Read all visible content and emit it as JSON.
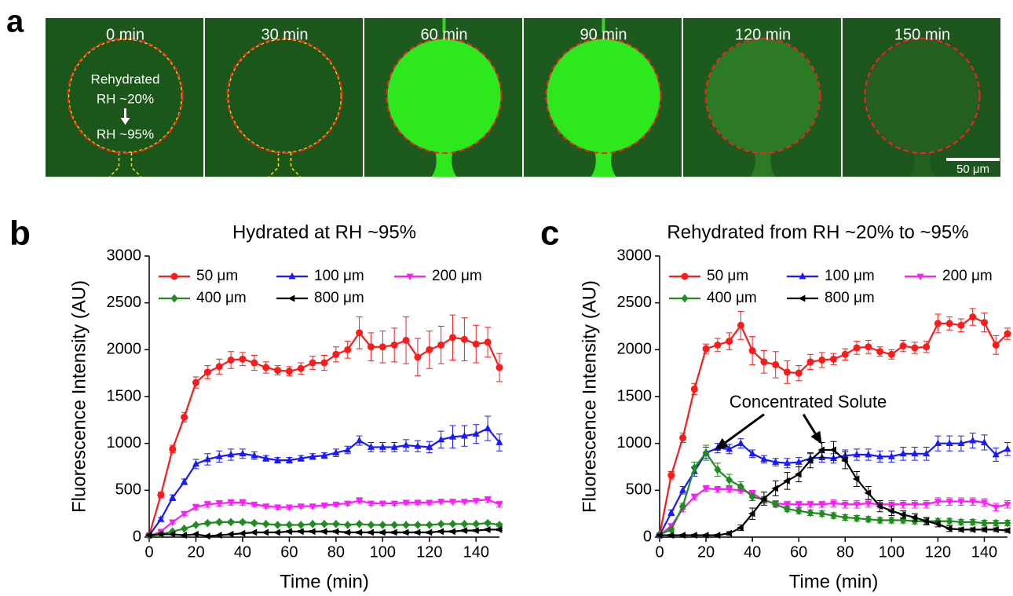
{
  "panel_labels": [
    "a",
    "b",
    "c"
  ],
  "microscopy": {
    "frames": [
      "0 min",
      "30 min",
      "60 min",
      "90 min",
      "120 min",
      "150 min"
    ],
    "annotation": [
      "Rehydrated",
      "RH ~20%",
      "RH ~95%"
    ],
    "scale_bar": "50 μm"
  },
  "chart_data": [
    {
      "type": "line",
      "title": "Hydrated at RH ~95%",
      "x_label": "Time (min)",
      "y_label": "Fluorescence Intensity (AU)",
      "x": [
        0,
        5,
        10,
        15,
        20,
        25,
        30,
        35,
        40,
        45,
        50,
        55,
        60,
        65,
        70,
        75,
        80,
        85,
        90,
        95,
        100,
        105,
        110,
        115,
        120,
        125,
        130,
        135,
        140,
        145,
        150
      ],
      "xlim": [
        0,
        150
      ],
      "xticks": [
        0,
        20,
        40,
        60,
        80,
        100,
        120,
        140
      ],
      "ylim": [
        0,
        3000
      ],
      "yticks": [
        0,
        500,
        1000,
        1500,
        2000,
        2500,
        3000
      ],
      "legend": "upper left",
      "series": [
        {
          "name": "50 μm",
          "color": "#ff1a1a",
          "marker": "circle",
          "values": [
            20,
            450,
            940,
            1280,
            1650,
            1760,
            1820,
            1890,
            1900,
            1860,
            1810,
            1780,
            1770,
            1800,
            1860,
            1860,
            1950,
            2000,
            2180,
            2030,
            2030,
            2050,
            2100,
            1920,
            2000,
            2050,
            2130,
            2110,
            2060,
            2080,
            1810
          ],
          "errors": [
            20,
            30,
            40,
            50,
            60,
            70,
            80,
            90,
            70,
            80,
            60,
            50,
            50,
            60,
            70,
            80,
            80,
            90,
            170,
            150,
            170,
            180,
            250,
            200,
            200,
            200,
            240,
            230,
            200,
            160,
            150
          ]
        },
        {
          "name": "100 μm",
          "color": "#1a1aff",
          "marker": "triangle-up",
          "values": [
            20,
            190,
            420,
            590,
            780,
            830,
            860,
            880,
            890,
            870,
            840,
            820,
            820,
            840,
            860,
            870,
            900,
            930,
            1030,
            960,
            960,
            960,
            980,
            970,
            960,
            1040,
            1070,
            1080,
            1100,
            1160,
            1010
          ],
          "errors": [
            20,
            20,
            30,
            30,
            50,
            60,
            60,
            60,
            50,
            40,
            30,
            30,
            30,
            30,
            30,
            30,
            40,
            40,
            50,
            50,
            50,
            50,
            60,
            60,
            60,
            90,
            120,
            110,
            100,
            130,
            90
          ]
        },
        {
          "name": "200 μm",
          "color": "#ff1aff",
          "marker": "triangle-down",
          "values": [
            10,
            60,
            160,
            250,
            320,
            350,
            360,
            370,
            370,
            350,
            330,
            320,
            320,
            330,
            330,
            340,
            350,
            360,
            390,
            360,
            360,
            360,
            370,
            370,
            370,
            380,
            380,
            380,
            390,
            400,
            350
          ],
          "errors": [
            10,
            10,
            20,
            20,
            30,
            30,
            30,
            30,
            30,
            20,
            20,
            20,
            20,
            20,
            20,
            20,
            20,
            20,
            30,
            20,
            20,
            20,
            20,
            20,
            20,
            20,
            20,
            20,
            20,
            30,
            30
          ]
        },
        {
          "name": "400 μm",
          "color": "#1e8c1e",
          "marker": "diamond",
          "values": [
            10,
            30,
            60,
            90,
            130,
            150,
            160,
            160,
            160,
            150,
            140,
            130,
            130,
            130,
            140,
            140,
            140,
            130,
            140,
            130,
            130,
            130,
            130,
            130,
            130,
            140,
            140,
            140,
            140,
            150,
            130
          ],
          "errors": [
            5,
            10,
            10,
            10,
            10,
            15,
            15,
            15,
            15,
            15,
            10,
            10,
            10,
            10,
            10,
            10,
            10,
            10,
            10,
            10,
            10,
            10,
            10,
            10,
            10,
            10,
            10,
            10,
            10,
            15,
            15
          ]
        },
        {
          "name": "800 μm",
          "color": "#000000",
          "marker": "triangle-left",
          "values": [
            20,
            30,
            30,
            20,
            30,
            10,
            20,
            30,
            40,
            50,
            50,
            50,
            60,
            60,
            60,
            60,
            60,
            50,
            50,
            50,
            50,
            50,
            50,
            50,
            50,
            60,
            60,
            70,
            70,
            80,
            80
          ],
          "errors": [
            5,
            5,
            5,
            5,
            5,
            5,
            5,
            5,
            5,
            5,
            5,
            5,
            10,
            10,
            10,
            10,
            10,
            10,
            10,
            10,
            10,
            10,
            10,
            10,
            10,
            10,
            10,
            10,
            10,
            10,
            10
          ]
        }
      ]
    },
    {
      "type": "line",
      "title": "Rehydrated from RH ~20% to ~95%",
      "x_label": "Time (min)",
      "y_label": "Fluorescence Intensity (AU)",
      "annotation": "Concentrated Solute",
      "x": [
        0,
        5,
        10,
        15,
        20,
        25,
        30,
        35,
        40,
        45,
        50,
        55,
        60,
        65,
        70,
        75,
        80,
        85,
        90,
        95,
        100,
        105,
        110,
        115,
        120,
        125,
        130,
        135,
        140,
        145,
        150
      ],
      "xlim": [
        0,
        150
      ],
      "xticks": [
        0,
        20,
        40,
        60,
        80,
        100,
        120,
        140
      ],
      "ylim": [
        0,
        3000
      ],
      "yticks": [
        0,
        500,
        1000,
        1500,
        2000,
        2500,
        3000
      ],
      "legend": "upper left",
      "series": [
        {
          "name": "50 μm",
          "color": "#ff1a1a",
          "marker": "circle",
          "values": [
            20,
            660,
            1060,
            1580,
            2010,
            2050,
            2090,
            2260,
            1990,
            1870,
            1840,
            1760,
            1750,
            1870,
            1890,
            1900,
            1950,
            2020,
            2030,
            1980,
            1950,
            2040,
            2020,
            2030,
            2280,
            2280,
            2260,
            2350,
            2290,
            2050,
            2170
          ],
          "errors": [
            20,
            40,
            50,
            60,
            50,
            70,
            90,
            150,
            150,
            120,
            140,
            120,
            80,
            80,
            80,
            60,
            60,
            70,
            70,
            50,
            50,
            60,
            60,
            60,
            100,
            70,
            70,
            90,
            100,
            100,
            60
          ]
        },
        {
          "name": "100 μm",
          "color": "#1a1aff",
          "marker": "triangle-up",
          "values": [
            20,
            260,
            500,
            700,
            900,
            950,
            940,
            1000,
            890,
            830,
            800,
            790,
            800,
            840,
            850,
            840,
            870,
            880,
            880,
            860,
            860,
            890,
            890,
            890,
            1000,
            1000,
            1000,
            1030,
            1010,
            880,
            940
          ],
          "errors": [
            20,
            30,
            40,
            50,
            60,
            50,
            50,
            50,
            40,
            40,
            40,
            50,
            50,
            50,
            50,
            50,
            60,
            60,
            60,
            60,
            60,
            70,
            70,
            70,
            80,
            80,
            80,
            80,
            80,
            70,
            70
          ]
        },
        {
          "name": "200 μm",
          "color": "#ff1aff",
          "marker": "triangle-down",
          "values": [
            20,
            120,
            300,
            430,
            520,
            510,
            510,
            500,
            470,
            390,
            360,
            350,
            350,
            350,
            350,
            360,
            350,
            350,
            360,
            350,
            350,
            350,
            350,
            350,
            380,
            380,
            380,
            380,
            370,
            320,
            350
          ],
          "errors": [
            10,
            20,
            30,
            30,
            30,
            30,
            30,
            30,
            30,
            30,
            30,
            30,
            30,
            30,
            30,
            40,
            40,
            40,
            40,
            40,
            40,
            40,
            40,
            40,
            40,
            40,
            40,
            40,
            40,
            40,
            40
          ]
        },
        {
          "name": "400 μm",
          "color": "#1e8c1e",
          "marker": "diamond",
          "values": [
            30,
            80,
            330,
            740,
            900,
            720,
            610,
            540,
            430,
            400,
            350,
            300,
            280,
            260,
            250,
            230,
            210,
            200,
            190,
            180,
            180,
            180,
            170,
            170,
            170,
            170,
            160,
            160,
            150,
            150,
            150
          ],
          "errors": [
            10,
            20,
            30,
            60,
            80,
            70,
            60,
            50,
            40,
            30,
            30,
            30,
            30,
            30,
            30,
            30,
            30,
            30,
            30,
            30,
            30,
            30,
            30,
            30,
            30,
            30,
            30,
            30,
            30,
            30,
            30
          ]
        },
        {
          "name": "800 μm",
          "color": "#000000",
          "marker": "triangle-left",
          "values": [
            20,
            20,
            20,
            20,
            20,
            20,
            40,
            100,
            250,
            410,
            520,
            600,
            670,
            820,
            930,
            930,
            820,
            620,
            470,
            330,
            280,
            240,
            210,
            170,
            140,
            90,
            80,
            80,
            80,
            80,
            70
          ],
          "errors": [
            10,
            10,
            10,
            10,
            10,
            10,
            20,
            30,
            60,
            70,
            80,
            90,
            80,
            80,
            80,
            90,
            90,
            80,
            70,
            60,
            50,
            40,
            40,
            40,
            30,
            30,
            20,
            20,
            20,
            20,
            20
          ]
        }
      ]
    }
  ]
}
